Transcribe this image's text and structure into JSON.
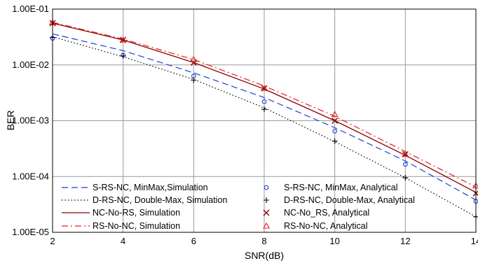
{
  "chart_data": {
    "type": "line",
    "title": "",
    "xlabel": "SNR(dB)",
    "ylabel": "BER",
    "xlim": [
      2,
      14
    ],
    "ylim": [
      1e-05,
      0.1
    ],
    "yscale": "log",
    "grid": true,
    "legend_position": "bottom",
    "x_ticks": [
      "2",
      "4",
      "6",
      "8",
      "10",
      "12",
      "14"
    ],
    "y_ticks": [
      "1.00E-01",
      "1.00E-02",
      "1.00E-03",
      "1.00E-04",
      "1.00E-05"
    ],
    "series": [
      {
        "name": "S-RS-NC, MinMax,Simulation",
        "color": "#1f3fd6",
        "style": "dashed",
        "x": [
          2,
          4,
          6,
          8,
          10,
          12,
          14
        ],
        "values": [
          0.036,
          0.018,
          0.0072,
          0.0026,
          0.00075,
          0.00019,
          3.8e-05
        ]
      },
      {
        "name": "D-RS-NC, Double-Max, Simulation",
        "color": "#000000",
        "style": "dotted",
        "x": [
          2,
          4,
          6,
          8,
          10,
          12,
          14
        ],
        "values": [
          0.032,
          0.014,
          0.0055,
          0.0017,
          0.00042,
          9.5e-05,
          1.9e-05
        ]
      },
      {
        "name": "NC-No-RS, Simulation",
        "color": "#8b0000",
        "style": "solid",
        "x": [
          2,
          4,
          6,
          8,
          10,
          12,
          14
        ],
        "values": [
          0.056,
          0.028,
          0.011,
          0.0037,
          0.001,
          0.00024,
          5.2e-05
        ]
      },
      {
        "name": "RS-No-NC, Simulation",
        "color": "#e0201c",
        "style": "dashdot",
        "x": [
          2,
          4,
          6,
          8,
          10,
          12,
          14
        ],
        "values": [
          0.058,
          0.029,
          0.0125,
          0.0042,
          0.0012,
          0.00028,
          6.5e-05
        ]
      },
      {
        "name": "S-RS-NC, MinMax, Analytical",
        "color": "#1f3fd6",
        "marker": "circle",
        "x": [
          2,
          4,
          6,
          8,
          10,
          12,
          14
        ],
        "values": [
          0.03,
          0.015,
          0.0063,
          0.0022,
          0.00065,
          0.000165,
          3.6e-05
        ]
      },
      {
        "name": "D-RS-NC, Double-Max, Analytical",
        "color": "#000000",
        "marker": "plus",
        "x": [
          2,
          4,
          6,
          8,
          10,
          12,
          14
        ],
        "values": [
          0.031,
          0.0145,
          0.0053,
          0.0016,
          0.00043,
          9.5e-05,
          1.9e-05
        ]
      },
      {
        "name": "NC-No_RS, Analytical",
        "color": "#8b0000",
        "marker": "xstar",
        "x": [
          2,
          4,
          6,
          8,
          10,
          12,
          14
        ],
        "values": [
          0.056,
          0.028,
          0.011,
          0.0038,
          0.001,
          0.00025,
          5e-05
        ]
      },
      {
        "name": "RS-No-NC, Analytical",
        "color": "#e0201c",
        "marker": "triangle",
        "x": [
          2,
          4,
          6,
          8,
          10,
          12,
          14
        ],
        "values": [
          0.057,
          0.028,
          0.0125,
          0.0038,
          0.0013,
          0.00025,
          6.8e-05
        ]
      }
    ]
  }
}
